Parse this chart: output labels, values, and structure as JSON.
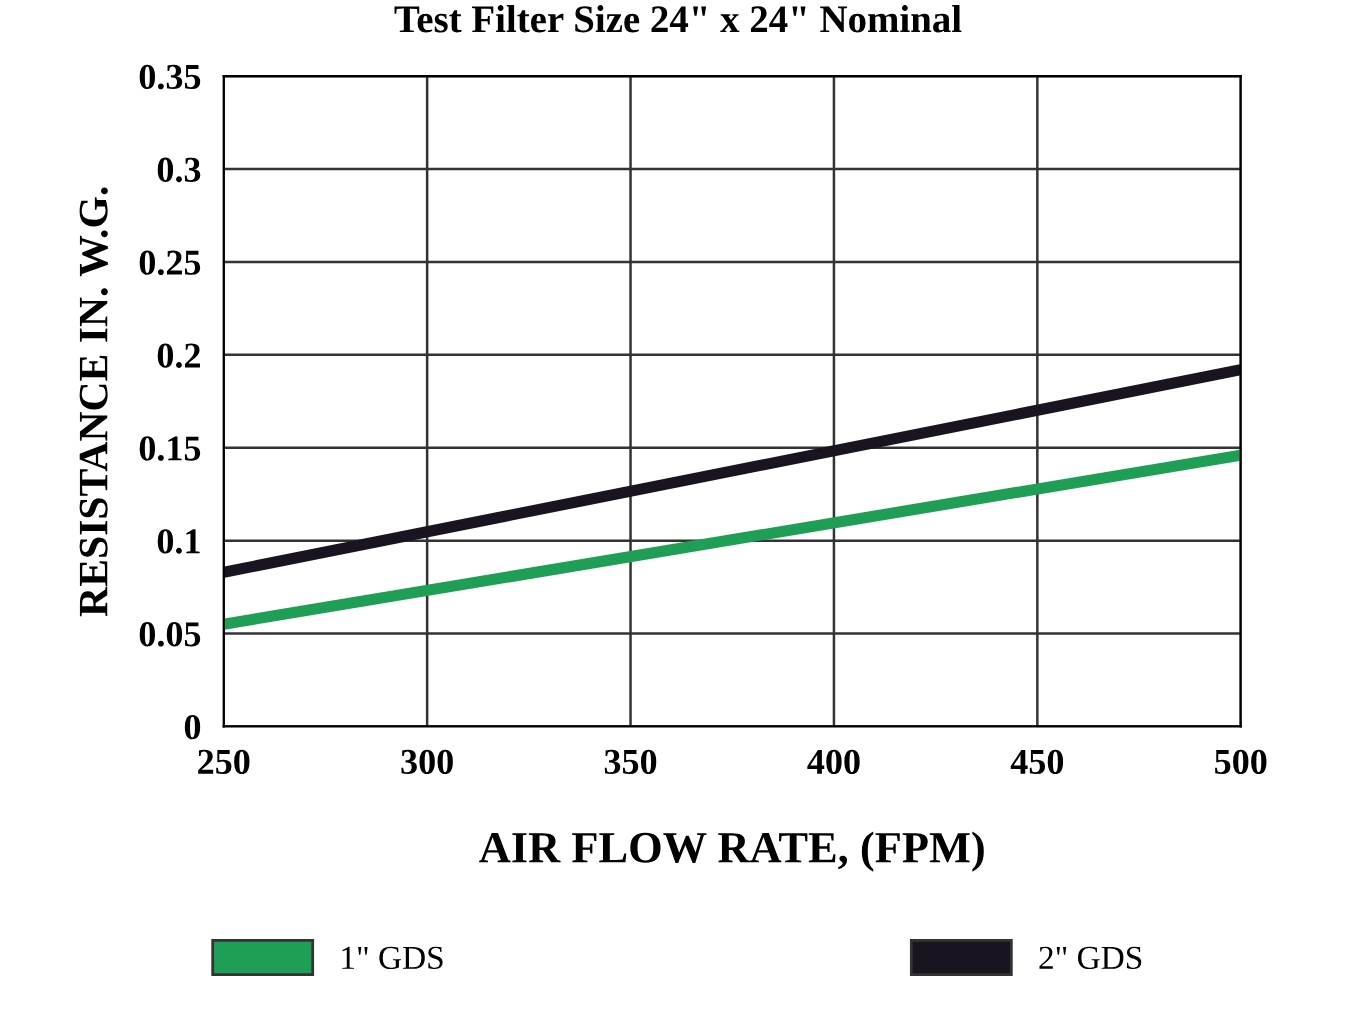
{
  "chart_data": {
    "type": "line",
    "title": "Test Filter Size 24\" x 24\" Nominal",
    "xlabel": "AIR FLOW RATE, (FPM)",
    "ylabel": "RESISTANCE IN. W.G.",
    "x": [
      250,
      500
    ],
    "series": [
      {
        "name": "1\" GDS",
        "color": "#1f9e55",
        "values": [
          0.055,
          0.146
        ]
      },
      {
        "name": "2\" GDS",
        "color": "#1a1420",
        "values": [
          0.083,
          0.192
        ]
      }
    ],
    "xlim": [
      250,
      500
    ],
    "xticks": [
      250,
      300,
      350,
      400,
      450,
      500
    ],
    "ylim": [
      0,
      0.35
    ],
    "yticks": [
      0,
      0.05,
      0.1,
      0.15,
      0.2,
      0.25,
      0.3,
      0.35
    ],
    "grid": true,
    "legend": "bottom",
    "marker": "none",
    "line_style": "solid"
  }
}
